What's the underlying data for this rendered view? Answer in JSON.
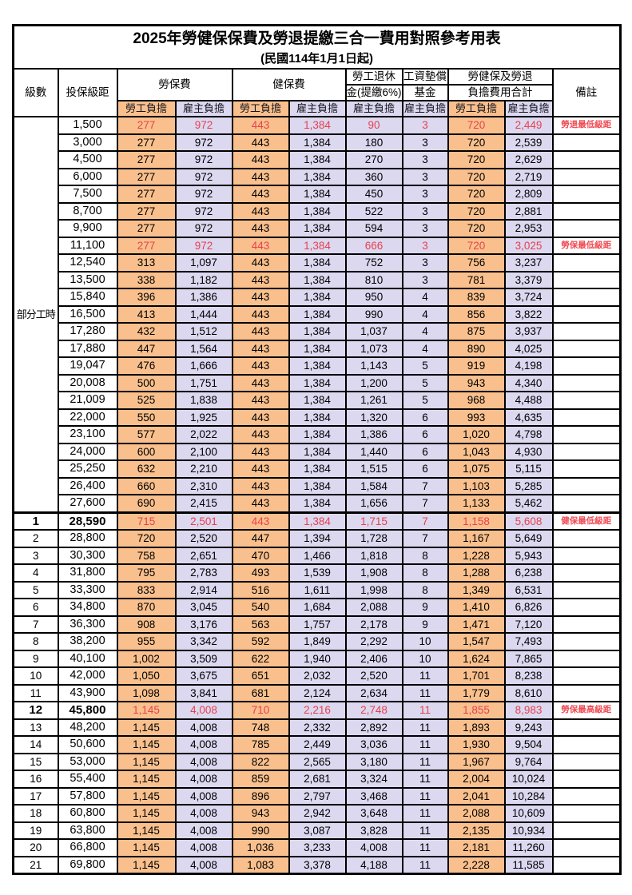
{
  "title": "2025年勞健保保費及勞退提繳三合一費用對照參考用表",
  "subtitle": "(民國114年1月1日起)",
  "colors": {
    "employee_column_bg": "#F9C08D",
    "employer_column_bg": "#DBD8F0",
    "highlight_red_text": "#E8414D",
    "remark_red_text": "#EF4A52",
    "border_black": "#000000"
  },
  "header": {
    "grade": "級數",
    "bracket": "投保級距",
    "labor_ins": "勞保費",
    "health_ins": "健保費",
    "pension_line1": "勞工退休",
    "pension_line2": "金(提繳6%)",
    "wage_fund_line1": "工資墊償",
    "wage_fund_line2": "基金",
    "total_line1": "勞健保及勞退",
    "total_line2": "負擔費用合計",
    "remark": "備註",
    "employee": "勞工負擔",
    "employer": "雇主負擔"
  },
  "part_time": {
    "label": "部分工時",
    "row_span": 23
  },
  "rows": [
    {
      "grade": "",
      "bracket": "1,500",
      "values": [
        "277",
        "972",
        "443",
        "1,384",
        "90",
        "3",
        "720",
        "2,449"
      ],
      "remark": "勞退最低級距",
      "red": true,
      "bold": false,
      "thick_top": false
    },
    {
      "grade": "",
      "bracket": "3,000",
      "values": [
        "277",
        "972",
        "443",
        "1,384",
        "180",
        "3",
        "720",
        "2,539"
      ],
      "remark": "",
      "red": false,
      "bold": false,
      "thick_top": false
    },
    {
      "grade": "",
      "bracket": "4,500",
      "values": [
        "277",
        "972",
        "443",
        "1,384",
        "270",
        "3",
        "720",
        "2,629"
      ],
      "remark": "",
      "red": false,
      "bold": false,
      "thick_top": false
    },
    {
      "grade": "",
      "bracket": "6,000",
      "values": [
        "277",
        "972",
        "443",
        "1,384",
        "360",
        "3",
        "720",
        "2,719"
      ],
      "remark": "",
      "red": false,
      "bold": false,
      "thick_top": false
    },
    {
      "grade": "",
      "bracket": "7,500",
      "values": [
        "277",
        "972",
        "443",
        "1,384",
        "450",
        "3",
        "720",
        "2,809"
      ],
      "remark": "",
      "red": false,
      "bold": false,
      "thick_top": false
    },
    {
      "grade": "",
      "bracket": "8,700",
      "values": [
        "277",
        "972",
        "443",
        "1,384",
        "522",
        "3",
        "720",
        "2,881"
      ],
      "remark": "",
      "red": false,
      "bold": false,
      "thick_top": false
    },
    {
      "grade": "",
      "bracket": "9,900",
      "values": [
        "277",
        "972",
        "443",
        "1,384",
        "594",
        "3",
        "720",
        "2,953"
      ],
      "remark": "",
      "red": false,
      "bold": false,
      "thick_top": false
    },
    {
      "grade": "",
      "bracket": "11,100",
      "values": [
        "277",
        "972",
        "443",
        "1,384",
        "666",
        "3",
        "720",
        "3,025"
      ],
      "remark": "勞保最低級距",
      "red": true,
      "bold": false,
      "thick_top": false
    },
    {
      "grade": "",
      "bracket": "12,540",
      "values": [
        "313",
        "1,097",
        "443",
        "1,384",
        "752",
        "3",
        "756",
        "3,237"
      ],
      "remark": "",
      "red": false,
      "bold": false,
      "thick_top": false
    },
    {
      "grade": "",
      "bracket": "13,500",
      "values": [
        "338",
        "1,182",
        "443",
        "1,384",
        "810",
        "3",
        "781",
        "3,379"
      ],
      "remark": "",
      "red": false,
      "bold": false,
      "thick_top": false
    },
    {
      "grade": "",
      "bracket": "15,840",
      "values": [
        "396",
        "1,386",
        "443",
        "1,384",
        "950",
        "4",
        "839",
        "3,724"
      ],
      "remark": "",
      "red": false,
      "bold": false,
      "thick_top": false
    },
    {
      "grade": "",
      "bracket": "16,500",
      "values": [
        "413",
        "1,444",
        "443",
        "1,384",
        "990",
        "4",
        "856",
        "3,822"
      ],
      "remark": "",
      "red": false,
      "bold": false,
      "thick_top": false
    },
    {
      "grade": "",
      "bracket": "17,280",
      "values": [
        "432",
        "1,512",
        "443",
        "1,384",
        "1,037",
        "4",
        "875",
        "3,937"
      ],
      "remark": "",
      "red": false,
      "bold": false,
      "thick_top": false
    },
    {
      "grade": "",
      "bracket": "17,880",
      "values": [
        "447",
        "1,564",
        "443",
        "1,384",
        "1,073",
        "4",
        "890",
        "4,025"
      ],
      "remark": "",
      "red": false,
      "bold": false,
      "thick_top": false
    },
    {
      "grade": "",
      "bracket": "19,047",
      "values": [
        "476",
        "1,666",
        "443",
        "1,384",
        "1,143",
        "5",
        "919",
        "4,198"
      ],
      "remark": "",
      "red": false,
      "bold": false,
      "thick_top": false
    },
    {
      "grade": "",
      "bracket": "20,008",
      "values": [
        "500",
        "1,751",
        "443",
        "1,384",
        "1,200",
        "5",
        "943",
        "4,340"
      ],
      "remark": "",
      "red": false,
      "bold": false,
      "thick_top": false
    },
    {
      "grade": "",
      "bracket": "21,009",
      "values": [
        "525",
        "1,838",
        "443",
        "1,384",
        "1,261",
        "5",
        "968",
        "4,488"
      ],
      "remark": "",
      "red": false,
      "bold": false,
      "thick_top": false
    },
    {
      "grade": "",
      "bracket": "22,000",
      "values": [
        "550",
        "1,925",
        "443",
        "1,384",
        "1,320",
        "6",
        "993",
        "4,635"
      ],
      "remark": "",
      "red": false,
      "bold": false,
      "thick_top": false
    },
    {
      "grade": "",
      "bracket": "23,100",
      "values": [
        "577",
        "2,022",
        "443",
        "1,384",
        "1,386",
        "6",
        "1,020",
        "4,798"
      ],
      "remark": "",
      "red": false,
      "bold": false,
      "thick_top": false
    },
    {
      "grade": "",
      "bracket": "24,000",
      "values": [
        "600",
        "2,100",
        "443",
        "1,384",
        "1,440",
        "6",
        "1,043",
        "4,930"
      ],
      "remark": "",
      "red": false,
      "bold": false,
      "thick_top": false
    },
    {
      "grade": "",
      "bracket": "25,250",
      "values": [
        "632",
        "2,210",
        "443",
        "1,384",
        "1,515",
        "6",
        "1,075",
        "5,115"
      ],
      "remark": "",
      "red": false,
      "bold": false,
      "thick_top": false
    },
    {
      "grade": "",
      "bracket": "26,400",
      "values": [
        "660",
        "2,310",
        "443",
        "1,384",
        "1,584",
        "7",
        "1,103",
        "5,285"
      ],
      "remark": "",
      "red": false,
      "bold": false,
      "thick_top": false
    },
    {
      "grade": "",
      "bracket": "27,600",
      "values": [
        "690",
        "2,415",
        "443",
        "1,384",
        "1,656",
        "7",
        "1,133",
        "5,462"
      ],
      "remark": "",
      "red": false,
      "bold": false,
      "thick_top": false
    },
    {
      "grade": "1",
      "bracket": "28,590",
      "values": [
        "715",
        "2,501",
        "443",
        "1,384",
        "1,715",
        "7",
        "1,158",
        "5,608"
      ],
      "remark": "健保最低級距",
      "red": true,
      "bold": true,
      "thick_top": true
    },
    {
      "grade": "2",
      "bracket": "28,800",
      "values": [
        "720",
        "2,520",
        "447",
        "1,394",
        "1,728",
        "7",
        "1,167",
        "5,649"
      ],
      "remark": "",
      "red": false,
      "bold": false,
      "thick_top": false
    },
    {
      "grade": "3",
      "bracket": "30,300",
      "values": [
        "758",
        "2,651",
        "470",
        "1,466",
        "1,818",
        "8",
        "1,228",
        "5,943"
      ],
      "remark": "",
      "red": false,
      "bold": false,
      "thick_top": false
    },
    {
      "grade": "4",
      "bracket": "31,800",
      "values": [
        "795",
        "2,783",
        "493",
        "1,539",
        "1,908",
        "8",
        "1,288",
        "6,238"
      ],
      "remark": "",
      "red": false,
      "bold": false,
      "thick_top": false
    },
    {
      "grade": "5",
      "bracket": "33,300",
      "values": [
        "833",
        "2,914",
        "516",
        "1,611",
        "1,998",
        "8",
        "1,349",
        "6,531"
      ],
      "remark": "",
      "red": false,
      "bold": false,
      "thick_top": false
    },
    {
      "grade": "6",
      "bracket": "34,800",
      "values": [
        "870",
        "3,045",
        "540",
        "1,684",
        "2,088",
        "9",
        "1,410",
        "6,826"
      ],
      "remark": "",
      "red": false,
      "bold": false,
      "thick_top": false
    },
    {
      "grade": "7",
      "bracket": "36,300",
      "values": [
        "908",
        "3,176",
        "563",
        "1,757",
        "2,178",
        "9",
        "1,471",
        "7,120"
      ],
      "remark": "",
      "red": false,
      "bold": false,
      "thick_top": false
    },
    {
      "grade": "8",
      "bracket": "38,200",
      "values": [
        "955",
        "3,342",
        "592",
        "1,849",
        "2,292",
        "10",
        "1,547",
        "7,493"
      ],
      "remark": "",
      "red": false,
      "bold": false,
      "thick_top": false
    },
    {
      "grade": "9",
      "bracket": "40,100",
      "values": [
        "1,002",
        "3,509",
        "622",
        "1,940",
        "2,406",
        "10",
        "1,624",
        "7,865"
      ],
      "remark": "",
      "red": false,
      "bold": false,
      "thick_top": false
    },
    {
      "grade": "10",
      "bracket": "42,000",
      "values": [
        "1,050",
        "3,675",
        "651",
        "2,032",
        "2,520",
        "11",
        "1,701",
        "8,238"
      ],
      "remark": "",
      "red": false,
      "bold": false,
      "thick_top": false
    },
    {
      "grade": "11",
      "bracket": "43,900",
      "values": [
        "1,098",
        "3,841",
        "681",
        "2,124",
        "2,634",
        "11",
        "1,779",
        "8,610"
      ],
      "remark": "",
      "red": false,
      "bold": false,
      "thick_top": false
    },
    {
      "grade": "12",
      "bracket": "45,800",
      "values": [
        "1,145",
        "4,008",
        "710",
        "2,216",
        "2,748",
        "11",
        "1,855",
        "8,983"
      ],
      "remark": "勞保最高級距",
      "red": true,
      "bold": true,
      "thick_top": false
    },
    {
      "grade": "13",
      "bracket": "48,200",
      "values": [
        "1,145",
        "4,008",
        "748",
        "2,332",
        "2,892",
        "11",
        "1,893",
        "9,243"
      ],
      "remark": "",
      "red": false,
      "bold": false,
      "thick_top": false
    },
    {
      "grade": "14",
      "bracket": "50,600",
      "values": [
        "1,145",
        "4,008",
        "785",
        "2,449",
        "3,036",
        "11",
        "1,930",
        "9,504"
      ],
      "remark": "",
      "red": false,
      "bold": false,
      "thick_top": false
    },
    {
      "grade": "15",
      "bracket": "53,000",
      "values": [
        "1,145",
        "4,008",
        "822",
        "2,565",
        "3,180",
        "11",
        "1,967",
        "9,764"
      ],
      "remark": "",
      "red": false,
      "bold": false,
      "thick_top": false
    },
    {
      "grade": "16",
      "bracket": "55,400",
      "values": [
        "1,145",
        "4,008",
        "859",
        "2,681",
        "3,324",
        "11",
        "2,004",
        "10,024"
      ],
      "remark": "",
      "red": false,
      "bold": false,
      "thick_top": false
    },
    {
      "grade": "17",
      "bracket": "57,800",
      "values": [
        "1,145",
        "4,008",
        "896",
        "2,797",
        "3,468",
        "11",
        "2,041",
        "10,284"
      ],
      "remark": "",
      "red": false,
      "bold": false,
      "thick_top": false
    },
    {
      "grade": "18",
      "bracket": "60,800",
      "values": [
        "1,145",
        "4,008",
        "943",
        "2,942",
        "3,648",
        "11",
        "2,088",
        "10,609"
      ],
      "remark": "",
      "red": false,
      "bold": false,
      "thick_top": false
    },
    {
      "grade": "19",
      "bracket": "63,800",
      "values": [
        "1,145",
        "4,008",
        "990",
        "3,087",
        "3,828",
        "11",
        "2,135",
        "10,934"
      ],
      "remark": "",
      "red": false,
      "bold": false,
      "thick_top": false
    },
    {
      "grade": "20",
      "bracket": "66,800",
      "values": [
        "1,145",
        "4,008",
        "1,036",
        "3,233",
        "4,008",
        "11",
        "2,181",
        "11,260"
      ],
      "remark": "",
      "red": false,
      "bold": false,
      "thick_top": false
    },
    {
      "grade": "21",
      "bracket": "69,800",
      "values": [
        "1,145",
        "4,008",
        "1,083",
        "3,378",
        "4,188",
        "11",
        "2,228",
        "11,585"
      ],
      "remark": "",
      "red": false,
      "bold": false,
      "thick_top": false
    }
  ]
}
